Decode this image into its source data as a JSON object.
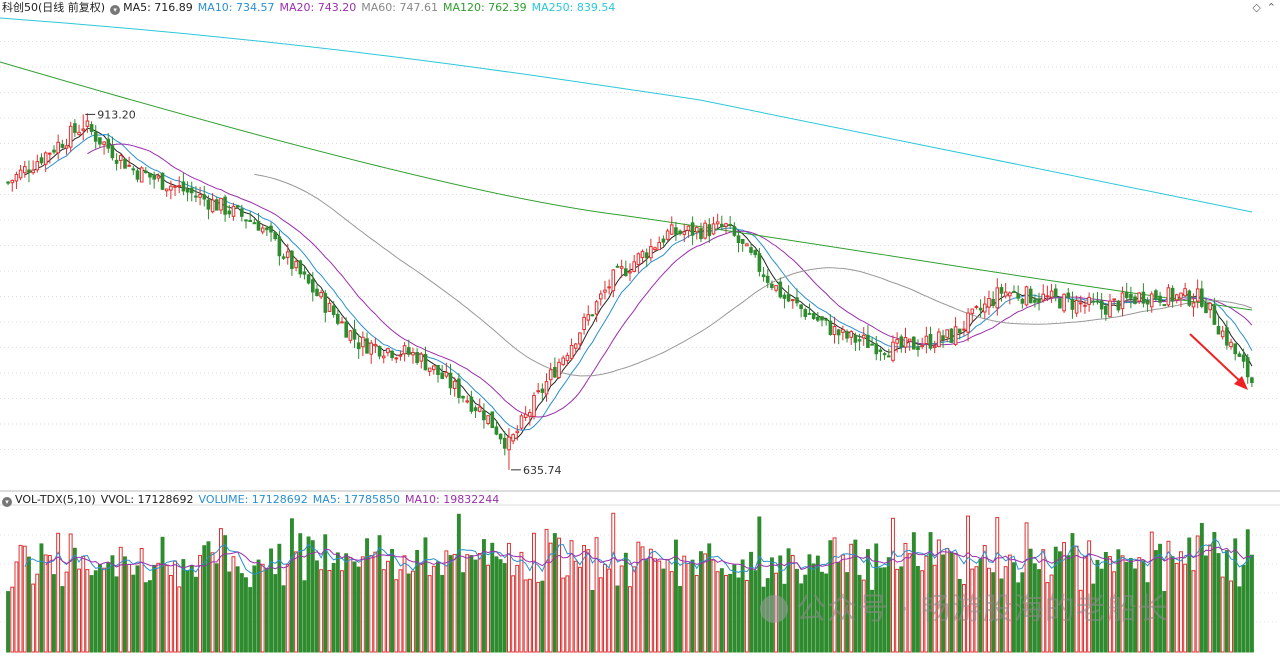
{
  "header": {
    "title": "科创50(日线 前复权)",
    "ma_legend": [
      {
        "label": "MA5: 716.89",
        "color": "#222222"
      },
      {
        "label": "MA10: 734.57",
        "color": "#2b8fcf"
      },
      {
        "label": "MA20: 743.20",
        "color": "#9b2fae"
      },
      {
        "label": "MA60: 747.61",
        "color": "#888888"
      },
      {
        "label": "MA120: 762.39",
        "color": "#2e9e2e"
      },
      {
        "label": "MA250: 839.54",
        "color": "#2bc8d8"
      }
    ]
  },
  "volume_header": {
    "title": "VOL-TDX(5,10)",
    "vvol": "VVOL: 17128692",
    "legend": [
      {
        "label": "VOLUME: 17128692",
        "color": "#2b8fcf"
      },
      {
        "label": "MA5: 17785850",
        "color": "#2b8fcf"
      },
      {
        "label": "MA10: 19832244",
        "color": "#9b2fae"
      }
    ]
  },
  "colors": {
    "up": "#e03030",
    "down": "#2e8b2e",
    "arrow": "#ee2222"
  },
  "watermark": "公众号 · 畅游股海的老船长",
  "chart_data": {
    "type": "candlestick",
    "title": "科创50(日线 前复权)",
    "ylim": [
      620,
      990
    ],
    "annotations": [
      {
        "text": "913.20",
        "value": 913.2,
        "index": 18
      },
      {
        "text": "635.74",
        "value": 635.74,
        "index": 120
      }
    ],
    "ma_current": {
      "MA5": 716.89,
      "MA10": 734.57,
      "MA20": 743.2,
      "MA60": 747.61,
      "MA120": 762.39,
      "MA250": 839.54
    },
    "volume": {
      "VOLUME": 17128692,
      "MA5": 17785850,
      "MA10": 19832244,
      "ylim": [
        0,
        30000000
      ]
    },
    "seed_close": 860
  }
}
